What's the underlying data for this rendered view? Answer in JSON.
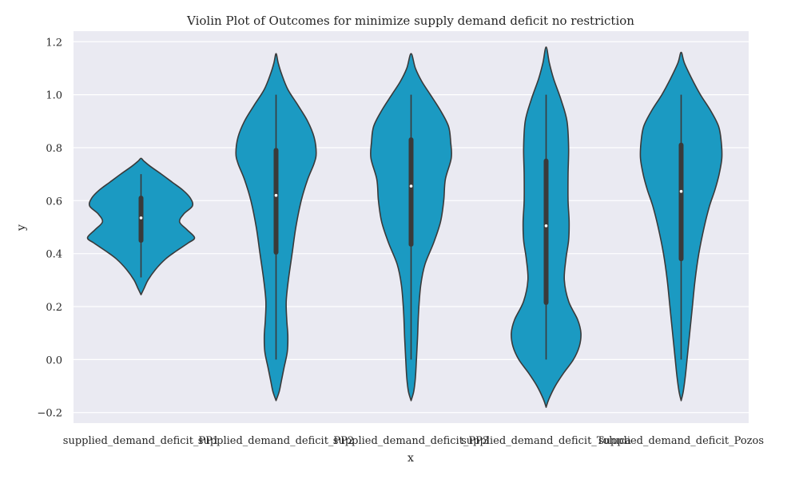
{
  "chart_data": {
    "type": "violin",
    "title": "Violin Plot of Outcomes for minimize supply demand deficit no restriction",
    "xlabel": "x",
    "ylabel": "y",
    "ylim": [
      -0.24,
      1.24
    ],
    "yticks": [
      -0.2,
      0.0,
      0.2,
      0.4,
      0.6,
      0.8,
      1.0,
      1.2
    ],
    "ytick_labels": [
      "−0.2",
      "0.0",
      "0.2",
      "0.4",
      "0.6",
      "0.8",
      "1.0",
      "1.2"
    ],
    "grid": true,
    "categories": [
      "supplied_demand_deficit_PP1",
      "supplied_demand_deficit_PP2",
      "supplied_demand_deficit_PP3",
      "supplied_demand_deficit_Toluca",
      "supplied_demand_deficit_Pozos"
    ],
    "fill_color": "#1b9ac2",
    "edge_color": "#3a3a3a",
    "background_color": "#eaeaf2",
    "violins": [
      {
        "category": "supplied_demand_deficit_PP1",
        "min": 0.31,
        "q1": 0.45,
        "median": 0.535,
        "q3": 0.61,
        "max": 0.7,
        "kde_range": [
          0.245,
          0.76
        ],
        "density": [
          [
            0.245,
            0
          ],
          [
            0.27,
            0.06
          ],
          [
            0.3,
            0.13
          ],
          [
            0.34,
            0.27
          ],
          [
            0.38,
            0.46
          ],
          [
            0.41,
            0.66
          ],
          [
            0.44,
            0.88
          ],
          [
            0.46,
            1.0
          ],
          [
            0.49,
            0.86
          ],
          [
            0.52,
            0.72
          ],
          [
            0.55,
            0.8
          ],
          [
            0.58,
            0.96
          ],
          [
            0.61,
            0.92
          ],
          [
            0.64,
            0.78
          ],
          [
            0.67,
            0.58
          ],
          [
            0.7,
            0.38
          ],
          [
            0.73,
            0.17
          ],
          [
            0.75,
            0.05
          ],
          [
            0.76,
            0
          ]
        ]
      },
      {
        "category": "supplied_demand_deficit_PP2",
        "min": 0.0,
        "q1": 0.405,
        "median": 0.62,
        "q3": 0.79,
        "max": 1.0,
        "kde_range": [
          -0.155,
          1.155
        ],
        "density": [
          [
            -0.155,
            0
          ],
          [
            -0.12,
            0.06
          ],
          [
            -0.08,
            0.1
          ],
          [
            -0.03,
            0.15
          ],
          [
            0.03,
            0.21
          ],
          [
            0.09,
            0.22
          ],
          [
            0.15,
            0.2
          ],
          [
            0.22,
            0.19
          ],
          [
            0.3,
            0.23
          ],
          [
            0.4,
            0.3
          ],
          [
            0.5,
            0.37
          ],
          [
            0.6,
            0.47
          ],
          [
            0.68,
            0.59
          ],
          [
            0.74,
            0.71
          ],
          [
            0.78,
            0.75
          ],
          [
            0.84,
            0.71
          ],
          [
            0.9,
            0.59
          ],
          [
            0.96,
            0.41
          ],
          [
            1.02,
            0.22
          ],
          [
            1.08,
            0.1
          ],
          [
            1.12,
            0.04
          ],
          [
            1.155,
            0
          ]
        ]
      },
      {
        "category": "supplied_demand_deficit_PP3",
        "min": 0.0,
        "q1": 0.435,
        "median": 0.655,
        "q3": 0.83,
        "max": 1.0,
        "kde_range": [
          -0.155,
          1.155
        ],
        "density": [
          [
            -0.155,
            0
          ],
          [
            -0.12,
            0.05
          ],
          [
            -0.07,
            0.08
          ],
          [
            0.0,
            0.1
          ],
          [
            0.08,
            0.12
          ],
          [
            0.18,
            0.14
          ],
          [
            0.28,
            0.18
          ],
          [
            0.36,
            0.26
          ],
          [
            0.44,
            0.42
          ],
          [
            0.52,
            0.55
          ],
          [
            0.6,
            0.61
          ],
          [
            0.68,
            0.64
          ],
          [
            0.76,
            0.75
          ],
          [
            0.82,
            0.74
          ],
          [
            0.88,
            0.7
          ],
          [
            0.94,
            0.55
          ],
          [
            1.0,
            0.36
          ],
          [
            1.05,
            0.2
          ],
          [
            1.1,
            0.08
          ],
          [
            1.155,
            0
          ]
        ]
      },
      {
        "category": "supplied_demand_deficit_Toluca",
        "min": 0.0,
        "q1": 0.215,
        "median": 0.505,
        "q3": 0.75,
        "max": 1.0,
        "kde_range": [
          -0.18,
          1.18
        ],
        "density": [
          [
            -0.18,
            0
          ],
          [
            -0.15,
            0.05
          ],
          [
            -0.1,
            0.17
          ],
          [
            -0.05,
            0.33
          ],
          [
            0.0,
            0.51
          ],
          [
            0.05,
            0.62
          ],
          [
            0.1,
            0.65
          ],
          [
            0.15,
            0.59
          ],
          [
            0.22,
            0.42
          ],
          [
            0.3,
            0.34
          ],
          [
            0.38,
            0.37
          ],
          [
            0.45,
            0.42
          ],
          [
            0.52,
            0.43
          ],
          [
            0.6,
            0.41
          ],
          [
            0.7,
            0.41
          ],
          [
            0.8,
            0.42
          ],
          [
            0.9,
            0.39
          ],
          [
            0.98,
            0.28
          ],
          [
            1.06,
            0.14
          ],
          [
            1.12,
            0.06
          ],
          [
            1.18,
            0
          ]
        ]
      },
      {
        "category": "supplied_demand_deficit_Pozos",
        "min": 0.0,
        "q1": 0.38,
        "median": 0.635,
        "q3": 0.81,
        "max": 1.0,
        "kde_range": [
          -0.155,
          1.16
        ],
        "density": [
          [
            -0.155,
            0
          ],
          [
            -0.12,
            0.04
          ],
          [
            -0.06,
            0.08
          ],
          [
            0.0,
            0.11
          ],
          [
            0.1,
            0.16
          ],
          [
            0.2,
            0.21
          ],
          [
            0.3,
            0.26
          ],
          [
            0.4,
            0.33
          ],
          [
            0.5,
            0.43
          ],
          [
            0.58,
            0.53
          ],
          [
            0.64,
            0.63
          ],
          [
            0.7,
            0.71
          ],
          [
            0.76,
            0.76
          ],
          [
            0.82,
            0.75
          ],
          [
            0.88,
            0.7
          ],
          [
            0.94,
            0.55
          ],
          [
            1.0,
            0.36
          ],
          [
            1.06,
            0.2
          ],
          [
            1.12,
            0.06
          ],
          [
            1.16,
            0
          ]
        ]
      }
    ]
  }
}
